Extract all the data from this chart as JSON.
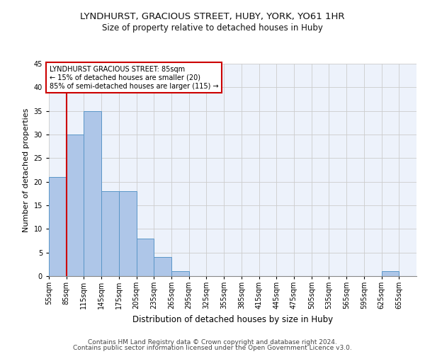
{
  "title1": "LYNDHURST, GRACIOUS STREET, HUBY, YORK, YO61 1HR",
  "title2": "Size of property relative to detached houses in Huby",
  "xlabel": "Distribution of detached houses by size in Huby",
  "ylabel": "Number of detached properties",
  "bin_labels": [
    "55sqm",
    "85sqm",
    "115sqm",
    "145sqm",
    "175sqm",
    "205sqm",
    "235sqm",
    "265sqm",
    "295sqm",
    "325sqm",
    "355sqm",
    "385sqm",
    "415sqm",
    "445sqm",
    "475sqm",
    "505sqm",
    "535sqm",
    "565sqm",
    "595sqm",
    "625sqm",
    "655sqm"
  ],
  "bin_edges": [
    55,
    85,
    115,
    145,
    175,
    205,
    235,
    265,
    295,
    325,
    355,
    385,
    415,
    445,
    475,
    505,
    535,
    565,
    595,
    625,
    655
  ],
  "bar_heights": [
    21,
    30,
    35,
    18,
    18,
    8,
    4,
    1,
    0,
    0,
    0,
    0,
    0,
    0,
    0,
    0,
    0,
    0,
    0,
    1,
    0
  ],
  "bar_color": "#aec6e8",
  "bar_edge_color": "#5a96c8",
  "property_line_x": 85,
  "property_line_color": "#cc0000",
  "annotation_text": "LYNDHURST GRACIOUS STREET: 85sqm\n← 15% of detached houses are smaller (20)\n85% of semi-detached houses are larger (115) →",
  "annotation_box_color": "#cc0000",
  "ylim": [
    0,
    45
  ],
  "yticks": [
    0,
    5,
    10,
    15,
    20,
    25,
    30,
    35,
    40,
    45
  ],
  "footer1": "Contains HM Land Registry data © Crown copyright and database right 2024.",
  "footer2": "Contains public sector information licensed under the Open Government Licence v3.0.",
  "bg_color": "#edf2fb",
  "grid_color": "#cccccc",
  "title1_fontsize": 9.5,
  "title2_fontsize": 8.5,
  "xlabel_fontsize": 8.5,
  "ylabel_fontsize": 8,
  "footer_fontsize": 6.5,
  "ann_fontsize": 7,
  "tick_fontsize": 7
}
